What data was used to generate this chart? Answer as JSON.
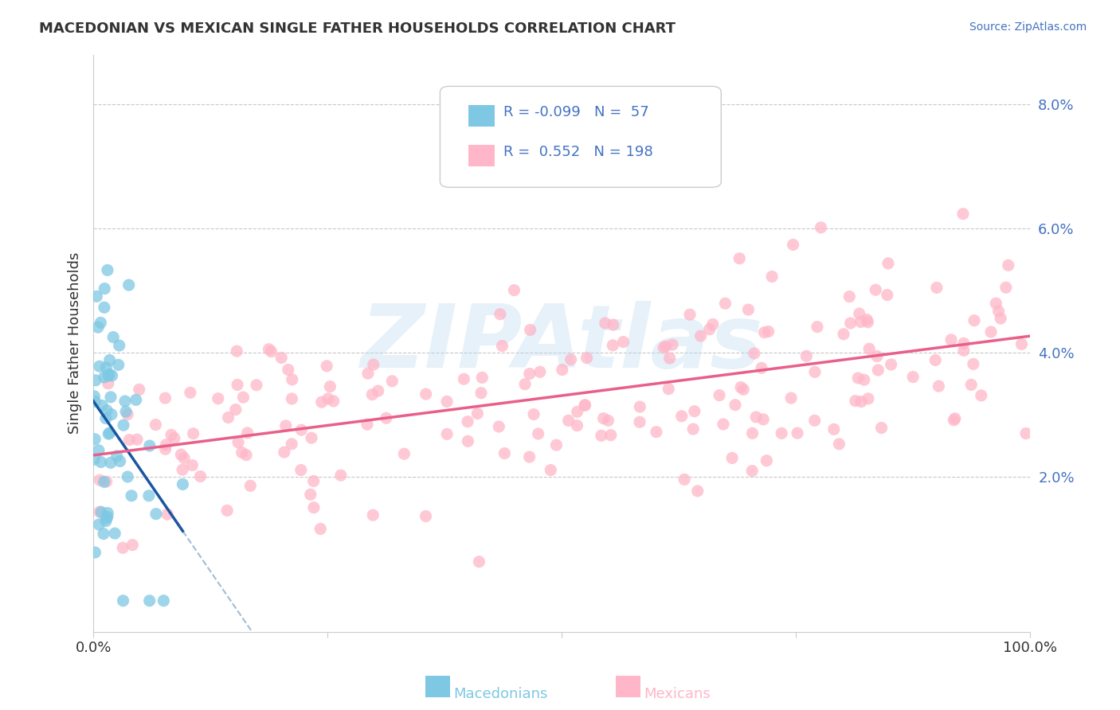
{
  "title": "MACEDONIAN VS MEXICAN SINGLE FATHER HOUSEHOLDS CORRELATION CHART",
  "source": "Source: ZipAtlas.com",
  "xlabel_macedonian": "Macedonians",
  "xlabel_mexican": "Mexicans",
  "ylabel": "Single Father Households",
  "watermark": "ZIPAtlas",
  "legend_macedonian_R": -0.099,
  "legend_macedonian_N": 57,
  "legend_mexican_R": 0.552,
  "legend_mexican_N": 198,
  "macedonian_color": "#7EC8E3",
  "mexican_color": "#FFB6C8",
  "macedonian_line_color": "#1A56A0",
  "mexican_line_color": "#E8608A",
  "background_color": "#ffffff",
  "grid_color": "#c8c8c8",
  "text_color": "#333333",
  "blue_text_color": "#4472C4",
  "xlim": [
    0.0,
    1.0
  ],
  "ylim": [
    -0.005,
    0.088
  ],
  "yticks": [
    0.02,
    0.04,
    0.06,
    0.08
  ],
  "ytick_labels": [
    "2.0%",
    "4.0%",
    "6.0%",
    "8.0%"
  ]
}
